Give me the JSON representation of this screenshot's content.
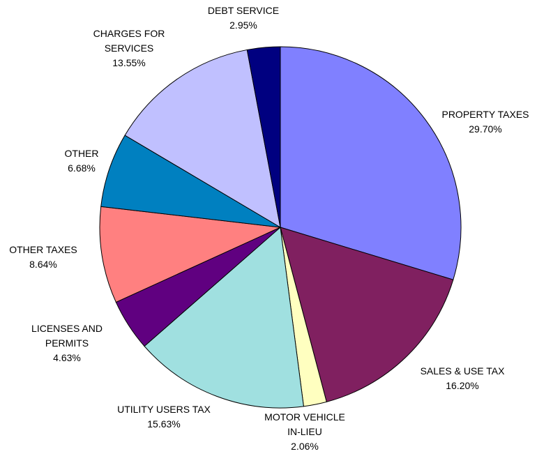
{
  "chart_data": {
    "type": "pie",
    "categories": [
      "PROPERTY TAXES",
      "SALES & USE TAX",
      "MOTOR VEHICLE IN-LIEU",
      "UTILITY USERS TAX",
      "LICENSES AND PERMITS",
      "OTHER TAXES",
      "OTHER",
      "CHARGES FOR SERVICES",
      "DEBT SERVICE"
    ],
    "values": [
      29.7,
      16.2,
      2.06,
      15.63,
      4.63,
      8.64,
      6.68,
      13.55,
      2.95
    ],
    "value_labels": [
      "29.70%",
      "16.20%",
      "2.06%",
      "15.63%",
      "4.63%",
      "8.64%",
      "6.68%",
      "13.55%",
      "2.95%"
    ],
    "colors": [
      "#8080ff",
      "#802060",
      "#ffffc0",
      "#a0e0e0",
      "#600080",
      "#ff8080",
      "#0080c0",
      "#c0c0ff",
      "#000080"
    ]
  }
}
